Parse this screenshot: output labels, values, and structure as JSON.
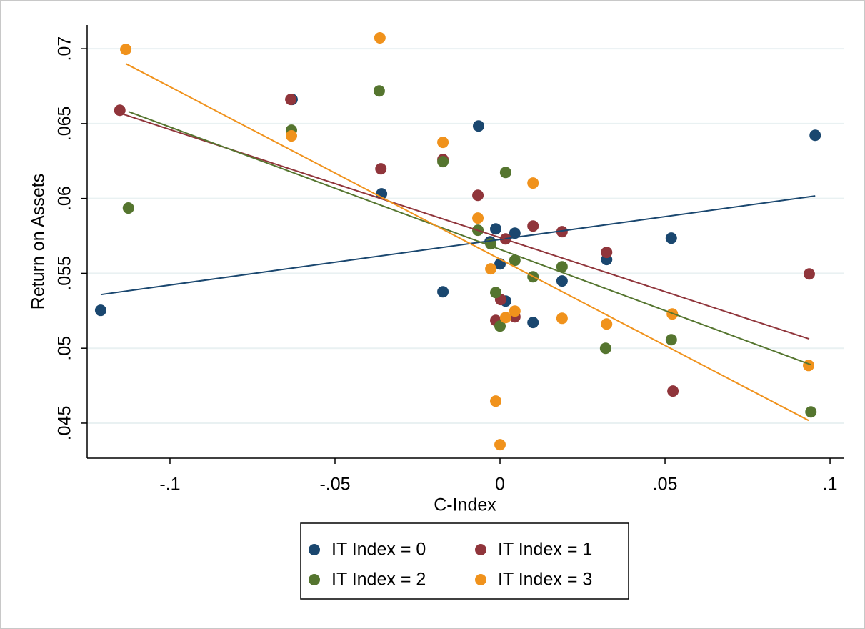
{
  "chart_data": {
    "type": "scatter",
    "xlabel": "C-Index",
    "ylabel": "Return on Assets",
    "xlim": [
      -0.1251,
      0.1041
    ],
    "ylim": [
      0.04266,
      0.07158
    ],
    "xticks": [
      {
        "value": -0.1,
        "label": "-.1"
      },
      {
        "value": -0.05,
        "label": "-.05"
      },
      0,
      {
        "value": 0.05,
        "label": ".05"
      },
      {
        "value": 0.1,
        "label": ".1"
      }
    ],
    "yticks": [
      {
        "value": 0.045,
        "label": ".045"
      },
      {
        "value": 0.05,
        "label": ".05"
      },
      {
        "value": 0.055,
        "label": ".055"
      },
      {
        "value": 0.06,
        "label": ".06"
      },
      {
        "value": 0.065,
        "label": ".065"
      },
      {
        "value": 0.07,
        "label": ".07"
      }
    ],
    "grid": true,
    "series": [
      {
        "name": "IT Index = 0",
        "color": "#1a476f",
        "x": [
          -0.121,
          -0.0359,
          -0.0173,
          -0.0065,
          -0.0013,
          -0.003,
          0,
          0.0017,
          0.0045,
          0.01,
          0.0188,
          0.0323,
          0.0519,
          0.0955,
          -0.063
        ],
        "values": [
          0.05253,
          0.06031,
          0.05377,
          0.06484,
          0.05797,
          0.05711,
          0.05563,
          0.05315,
          0.05768,
          0.05172,
          0.05449,
          0.05592,
          0.05735,
          0.06422,
          0.06661
        ],
        "fit_x": [
          -0.121,
          0.0955
        ],
        "fit_y": [
          0.05358,
          0.06017
        ]
      },
      {
        "name": "IT Index = 1",
        "color": "#90353b",
        "x": [
          -0.1152,
          -0.0634,
          -0.0361,
          -0.0173,
          -0.0067,
          -0.0013,
          0.0002,
          0.0017,
          0.0045,
          0.01,
          0.0188,
          0.0323,
          0.0524,
          0.0937
        ],
        "values": [
          0.06589,
          0.06661,
          0.06198,
          0.0626,
          0.06021,
          0.05186,
          0.05325,
          0.0573,
          0.0521,
          0.05816,
          0.05778,
          0.0564,
          0.04714,
          0.05496
        ],
        "fit_x": [
          -0.1152,
          0.0937
        ],
        "fit_y": [
          0.0657,
          0.05062
        ]
      },
      {
        "name": "IT Index = 2",
        "color": "#55752f",
        "x": [
          -0.1126,
          -0.0632,
          -0.0366,
          -0.0173,
          -0.0067,
          -0.0028,
          -0.0013,
          0,
          0.0017,
          0.0045,
          0.01,
          0.0188,
          0.032,
          0.0519,
          0.0942
        ],
        "values": [
          0.05936,
          0.06456,
          0.06718,
          0.06246,
          0.05788,
          0.05697,
          0.05372,
          0.05148,
          0.06174,
          0.05587,
          0.05477,
          0.05544,
          0.05,
          0.05057,
          0.04575
        ],
        "fit_x": [
          -0.1126,
          0.0942
        ],
        "fit_y": [
          0.0658,
          0.0489
        ]
      },
      {
        "name": "IT Index = 3",
        "color": "#f0921c",
        "x": [
          -0.1134,
          -0.0364,
          -0.0632,
          -0.0173,
          -0.0067,
          -0.0028,
          -0.0013,
          0,
          0.0017,
          0.0045,
          0.01,
          0.0188,
          0.0323,
          0.0522,
          0.0935
        ],
        "values": [
          0.06995,
          0.07072,
          0.06418,
          0.06375,
          0.05869,
          0.0553,
          0.04647,
          0.04356,
          0.05205,
          0.05248,
          0.06103,
          0.052,
          0.05162,
          0.05229,
          0.04885
        ],
        "fit_x": [
          -0.1134,
          0.0935
        ],
        "fit_y": [
          0.069,
          0.04518
        ]
      }
    ]
  }
}
